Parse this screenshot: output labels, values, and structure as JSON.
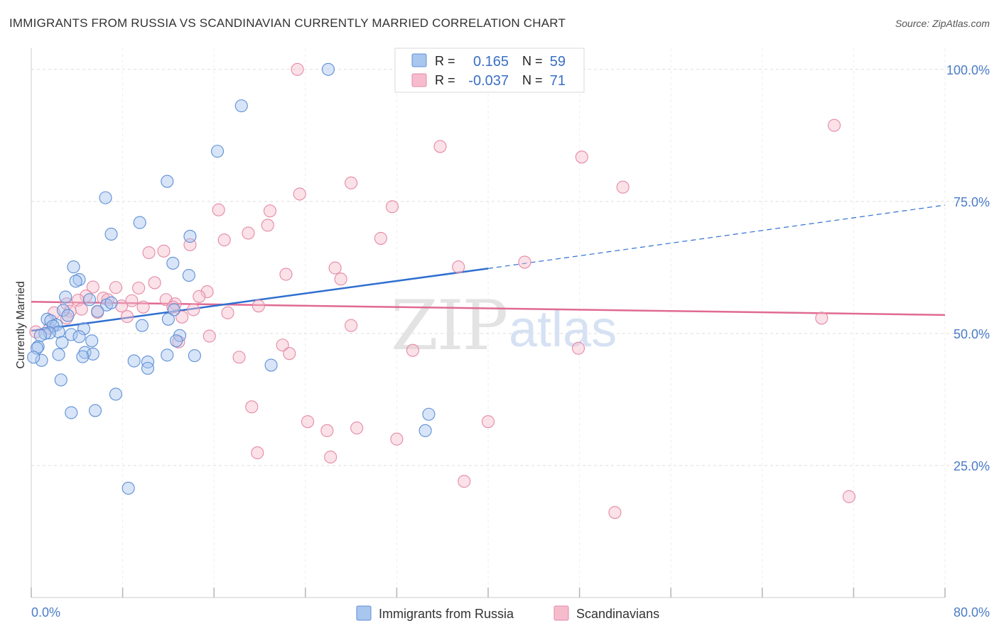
{
  "title": "IMMIGRANTS FROM RUSSIA VS SCANDINAVIAN CURRENTLY MARRIED CORRELATION CHART",
  "source": "Source: ZipAtlas.com",
  "watermark": {
    "zip": "ZIP",
    "atlas": "atlas"
  },
  "colors": {
    "blue_fill": "#a9c6ef",
    "blue_stroke": "#5d8fd6",
    "blue_line": "#2f6fd0",
    "pink_fill": "#f6bccd",
    "pink_stroke": "#e48aa6",
    "pink_line": "#e06a92",
    "grid": "#dddddd",
    "tick_text": "#4a7cc7"
  },
  "legend_box": {
    "rows": [
      {
        "r_label": "R =",
        "r_value": "0.165",
        "n_label": "N =",
        "n_value": "59"
      },
      {
        "r_label": "R =",
        "r_value": "-0.037",
        "n_label": "N =",
        "n_value": "71"
      }
    ]
  },
  "bottom_legend": {
    "series1": "Immigrants from Russia",
    "series2": "Scandinavians"
  },
  "chart_data": {
    "type": "scatter",
    "title": "IMMIGRANTS FROM RUSSIA VS SCANDINAVIAN CURRENTLY MARRIED CORRELATION CHART",
    "xlabel": "",
    "ylabel": "Currently Married",
    "xlim": [
      0,
      80
    ],
    "ylim": [
      0,
      104
    ],
    "x_tick_labels": {
      "left": "0.0%",
      "right": "80.0%"
    },
    "y_ticks": [
      {
        "value": 100,
        "label": "100.0%"
      },
      {
        "value": 75,
        "label": "75.0%"
      },
      {
        "value": 50,
        "label": "50.0%"
      },
      {
        "value": 25,
        "label": "25.0%"
      }
    ],
    "grid": true,
    "series": [
      {
        "name": "Immigrants from Russia",
        "r": 0.165,
        "n": 59,
        "trend": {
          "x": [
            0,
            40
          ],
          "y": [
            50.5,
            62.3
          ],
          "dashed_to": {
            "x": 80,
            "y": 74.3
          }
        },
        "points": [
          [
            26.0,
            100.0
          ],
          [
            18.4,
            93.1
          ],
          [
            16.3,
            84.5
          ],
          [
            11.9,
            78.8
          ],
          [
            6.5,
            75.7
          ],
          [
            9.5,
            71.0
          ],
          [
            7.0,
            68.8
          ],
          [
            13.9,
            68.4
          ],
          [
            3.7,
            62.6
          ],
          [
            12.4,
            63.3
          ],
          [
            4.2,
            60.2
          ],
          [
            13.8,
            61.0
          ],
          [
            3.9,
            59.9
          ],
          [
            3.0,
            56.9
          ],
          [
            5.1,
            56.4
          ],
          [
            6.6,
            55.4
          ],
          [
            2.8,
            54.4
          ],
          [
            5.8,
            54.2
          ],
          [
            3.2,
            53.4
          ],
          [
            1.4,
            52.7
          ],
          [
            1.7,
            52.4
          ],
          [
            12.5,
            54.5
          ],
          [
            12.0,
            52.7
          ],
          [
            2.2,
            51.6
          ],
          [
            1.9,
            51.4
          ],
          [
            9.7,
            51.5
          ],
          [
            2.4,
            50.3
          ],
          [
            1.6,
            50.1
          ],
          [
            1.2,
            50.0
          ],
          [
            4.6,
            50.9
          ],
          [
            3.5,
            49.8
          ],
          [
            4.2,
            49.4
          ],
          [
            0.8,
            49.6
          ],
          [
            2.7,
            48.3
          ],
          [
            13.0,
            49.6
          ],
          [
            12.7,
            48.6
          ],
          [
            5.3,
            48.6
          ],
          [
            0.6,
            47.5
          ],
          [
            0.5,
            47.2
          ],
          [
            4.7,
            46.4
          ],
          [
            2.4,
            46.0
          ],
          [
            5.4,
            46.1
          ],
          [
            11.9,
            45.9
          ],
          [
            14.3,
            45.8
          ],
          [
            4.5,
            45.6
          ],
          [
            0.9,
            44.9
          ],
          [
            9.0,
            44.8
          ],
          [
            10.2,
            44.6
          ],
          [
            21.0,
            44.0
          ],
          [
            10.2,
            43.4
          ],
          [
            2.6,
            41.2
          ],
          [
            7.4,
            38.5
          ],
          [
            5.6,
            35.4
          ],
          [
            3.5,
            35.0
          ],
          [
            34.8,
            34.7
          ],
          [
            34.5,
            31.6
          ],
          [
            8.5,
            20.7
          ],
          [
            0.2,
            45.5
          ],
          [
            7.0,
            55.8
          ]
        ]
      },
      {
        "name": "Scandinavians",
        "r": -0.037,
        "n": 71,
        "trend": {
          "x": [
            0,
            80
          ],
          "y": [
            56.0,
            53.5
          ]
        },
        "points": [
          [
            23.3,
            100.0
          ],
          [
            70.3,
            89.4
          ],
          [
            35.8,
            85.4
          ],
          [
            48.2,
            83.4
          ],
          [
            51.8,
            77.7
          ],
          [
            28.0,
            78.5
          ],
          [
            23.5,
            76.4
          ],
          [
            31.6,
            74.0
          ],
          [
            16.4,
            73.4
          ],
          [
            20.9,
            73.2
          ],
          [
            20.7,
            70.5
          ],
          [
            19.0,
            69.0
          ],
          [
            16.9,
            67.7
          ],
          [
            30.6,
            68.0
          ],
          [
            13.9,
            66.8
          ],
          [
            10.3,
            65.3
          ],
          [
            11.6,
            65.6
          ],
          [
            43.2,
            63.5
          ],
          [
            37.4,
            62.6
          ],
          [
            26.6,
            62.4
          ],
          [
            22.3,
            61.2
          ],
          [
            27.1,
            60.3
          ],
          [
            10.8,
            59.6
          ],
          [
            5.4,
            58.8
          ],
          [
            7.4,
            58.7
          ],
          [
            9.4,
            58.6
          ],
          [
            15.4,
            57.9
          ],
          [
            4.8,
            57.1
          ],
          [
            14.7,
            57.0
          ],
          [
            6.3,
            56.7
          ],
          [
            4.1,
            56.3
          ],
          [
            6.7,
            56.4
          ],
          [
            8.8,
            56.2
          ],
          [
            11.8,
            56.4
          ],
          [
            12.6,
            55.6
          ],
          [
            3.1,
            55.6
          ],
          [
            12.4,
            55.0
          ],
          [
            19.9,
            55.2
          ],
          [
            7.9,
            55.2
          ],
          [
            9.8,
            55.0
          ],
          [
            4.4,
            54.6
          ],
          [
            14.2,
            54.5
          ],
          [
            3.4,
            54.2
          ],
          [
            5.8,
            54.0
          ],
          [
            17.2,
            53.9
          ],
          [
            2.0,
            53.9
          ],
          [
            8.4,
            53.2
          ],
          [
            13.2,
            53.1
          ],
          [
            3.1,
            52.9
          ],
          [
            69.2,
            52.9
          ],
          [
            28.0,
            51.5
          ],
          [
            1.6,
            51.0
          ],
          [
            0.4,
            50.3
          ],
          [
            15.6,
            49.5
          ],
          [
            12.9,
            48.4
          ],
          [
            22.0,
            47.8
          ],
          [
            33.4,
            46.8
          ],
          [
            47.9,
            47.2
          ],
          [
            22.6,
            46.2
          ],
          [
            18.2,
            45.5
          ],
          [
            19.3,
            36.1
          ],
          [
            24.2,
            33.3
          ],
          [
            40.0,
            33.3
          ],
          [
            28.5,
            32.1
          ],
          [
            25.9,
            31.6
          ],
          [
            32.0,
            30.0
          ],
          [
            19.8,
            27.4
          ],
          [
            26.2,
            26.6
          ],
          [
            37.9,
            22.0
          ],
          [
            51.1,
            16.1
          ],
          [
            71.6,
            19.1
          ]
        ]
      }
    ]
  }
}
